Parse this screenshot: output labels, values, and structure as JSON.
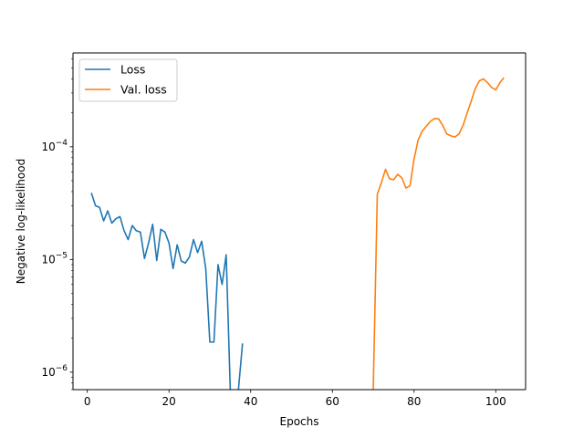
{
  "chart_data": {
    "type": "line",
    "title": "",
    "xlabel": "Epochs",
    "ylabel": "Negative log-likelihood",
    "yscale": "log",
    "xlim": [
      -3.5,
      107.3
    ],
    "ylim": [
      7e-07,
      0.00068
    ],
    "xticks": [
      0,
      20,
      40,
      60,
      80,
      100
    ],
    "xtick_labels": [
      "0",
      "20",
      "40",
      "60",
      "80",
      "100"
    ],
    "yticks": [
      1e-06,
      1e-05,
      0.0001
    ],
    "ytick_labels": [
      "10−6",
      "10−5",
      "10−4"
    ],
    "grid": false,
    "legend_position": "upper left",
    "series": [
      {
        "name": "Loss",
        "color": "#1f77b4",
        "x": [
          1,
          2,
          3,
          4,
          5,
          6,
          7,
          8,
          9,
          10,
          11,
          12,
          13,
          14,
          15,
          16,
          17,
          18,
          19,
          20,
          21,
          22,
          23,
          24,
          25,
          26,
          27,
          28,
          29,
          30,
          31,
          32,
          33,
          34,
          35,
          36,
          37,
          38
        ],
        "y": [
          3.9e-05,
          3e-05,
          2.9e-05,
          2.2e-05,
          2.7e-05,
          2.1e-05,
          2.3e-05,
          2.4e-05,
          1.8e-05,
          1.5e-05,
          2e-05,
          1.8e-05,
          1.75e-05,
          1.02e-05,
          1.4e-05,
          2.05e-05,
          9.8e-06,
          1.85e-05,
          1.75e-05,
          1.4e-05,
          8.3e-06,
          1.35e-05,
          9.7e-06,
          9.3e-06,
          1.05e-05,
          1.5e-05,
          1.15e-05,
          1.45e-05,
          8.3e-06,
          1.85e-06,
          1.85e-06,
          9e-06,
          6e-06,
          1.1e-05,
          7e-07,
          null,
          7e-07,
          1.8e-06
        ]
      },
      {
        "name": "Val. loss",
        "color": "#ff7f0e",
        "x": [
          70,
          71,
          72,
          73,
          74,
          75,
          76,
          77,
          78,
          79,
          80,
          81,
          82,
          83,
          84,
          85,
          86,
          87,
          88,
          89,
          90,
          91,
          92,
          93,
          94,
          95,
          96,
          97,
          98,
          99,
          100,
          101,
          102
        ],
        "y": [
          7e-07,
          3.8e-05,
          4.8e-05,
          6.3e-05,
          5.2e-05,
          5.1e-05,
          5.7e-05,
          5.3e-05,
          4.3e-05,
          4.5e-05,
          7.8e-05,
          0.000115,
          0.000138,
          0.000152,
          0.000168,
          0.000178,
          0.000177,
          0.000155,
          0.00013,
          0.000125,
          0.000122,
          0.00013,
          0.000155,
          0.0002,
          0.000255,
          0.00033,
          0.000385,
          0.0004,
          0.00037,
          0.000335,
          0.00032,
          0.00037,
          0.00041
        ]
      }
    ]
  }
}
